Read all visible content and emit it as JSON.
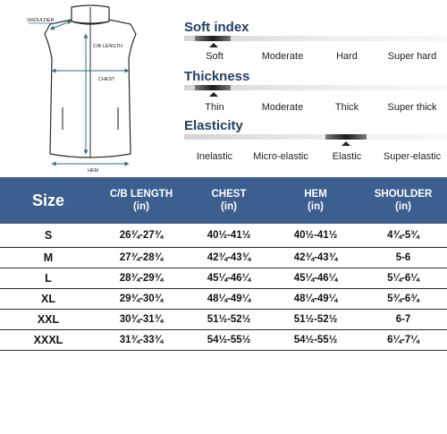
{
  "diagram": {
    "labels": {
      "shoulder": "SHOULDER",
      "cb_length": "C/B LENGTH",
      "chest": "CHEST",
      "hem": "HEM"
    }
  },
  "attributes": [
    {
      "title": "Soft index",
      "options": [
        "Soft",
        "Moderate",
        "Hard",
        "Super hard"
      ],
      "selected": "Soft"
    },
    {
      "title": "Thickness",
      "options": [
        "Thin",
        "Moderate",
        "Thick",
        "Super thick"
      ],
      "selected": "Thin"
    },
    {
      "title": "Elasticity",
      "options": [
        "Inelastic",
        "Micro-elastic",
        "Elastic",
        "Super-elastic"
      ],
      "selected": "Elastic"
    }
  ],
  "table": {
    "headers": [
      {
        "line1": "Size",
        "line2": ""
      },
      {
        "line1": "C/B LENGTH",
        "line2": "(in)"
      },
      {
        "line1": "CHEST",
        "line2": "(in)"
      },
      {
        "line1": "HEM",
        "line2": "(in)"
      },
      {
        "line1": "SHOULDER",
        "line2": "(in)"
      }
    ],
    "rows": [
      [
        "S",
        "26¾-27¾",
        "40½-41½",
        "40½-41½",
        "4¾-5¾"
      ],
      [
        "M",
        "27¾-28¾",
        "42¾-43¾",
        "42¾-43¾",
        "5-6"
      ],
      [
        "L",
        "28¾-29¾",
        "45¼-46¼",
        "45¼-46¼",
        "5¼-6¼"
      ],
      [
        "XL",
        "29¾-30¾",
        "48¼-49¼",
        "48¼-49¼",
        "5¾-6¾"
      ],
      [
        "XXL",
        "30¾-31¾",
        "51½-52½",
        "51½-52½",
        "6-7"
      ],
      [
        "XXXL",
        "31¾-33¾",
        "54½-55½",
        "54½-55½",
        "6¼-7¼"
      ]
    ]
  },
  "colors": {
    "header_bg": "#3d5f8f",
    "title_blue": "#1f3f66",
    "measure_line": "#2b6f8a"
  }
}
